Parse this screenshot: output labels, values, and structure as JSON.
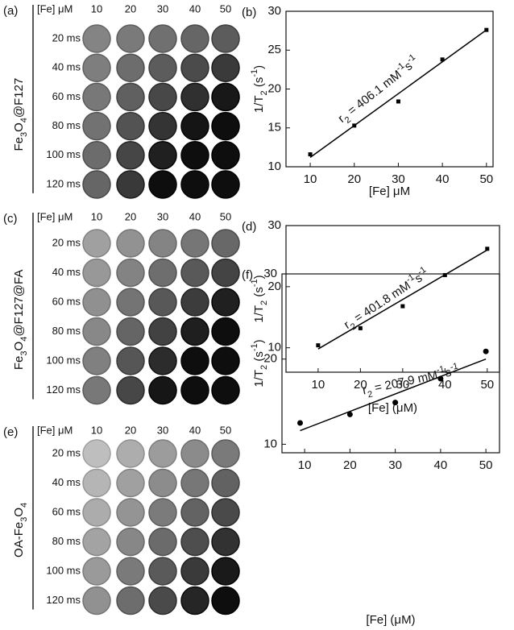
{
  "phantoms": [
    {
      "label": "(a)",
      "sample": [
        "Fe",
        "3",
        "O",
        "4",
        "@F127"
      ],
      "header": "[Fe] μM",
      "columns": [
        "10",
        "20",
        "30",
        "40",
        "50"
      ],
      "rows": [
        "20 ms",
        "40 ms",
        "60 ms",
        "80 ms",
        "100 ms",
        "120 ms"
      ]
    },
    {
      "label": "(c)",
      "sample": [
        "Fe",
        "3",
        "O",
        "4",
        "@F127@FA"
      ],
      "header": "[Fe] μM",
      "columns": [
        "10",
        "20",
        "30",
        "40",
        "50"
      ],
      "rows": [
        "20 ms",
        "40 ms",
        "60 ms",
        "80 ms",
        "100 ms",
        "120 ms"
      ]
    },
    {
      "label": "(e)",
      "sample": [
        "OA-Fe",
        "3",
        "O",
        "4"
      ],
      "header": "[Fe] μM",
      "columns": [
        "10",
        "20",
        "30",
        "40",
        "50"
      ],
      "rows": [
        "20 ms",
        "40 ms",
        "60 ms",
        "80 ms",
        "100 ms",
        "120 ms"
      ]
    }
  ],
  "chart_data": [
    {
      "type": "scatter",
      "label": "(b)",
      "x": [
        10,
        20,
        30,
        40,
        50
      ],
      "values": [
        11.6,
        15.3,
        18.4,
        23.8,
        27.6
      ],
      "fit": {
        "x": [
          10,
          50
        ],
        "y": [
          11.2,
          27.6
        ]
      },
      "xlim": [
        4.5,
        51.5
      ],
      "ylim": [
        10,
        30
      ],
      "xticks": [
        10,
        20,
        30,
        40,
        50
      ],
      "yticks": [
        10,
        15,
        20,
        25,
        30
      ],
      "xlabel": "[Fe] μM",
      "ylabel": [
        "1/T",
        "2",
        " (s",
        "-1",
        ")"
      ],
      "annotation": [
        "r",
        "2",
        " = 406.1 mM",
        "-1",
        "s",
        "-1"
      ],
      "marker": "square",
      "color": "#000000"
    },
    {
      "type": "scatter",
      "label": "(d)",
      "x": [
        10,
        20,
        30,
        40,
        50
      ],
      "values": [
        10.4,
        13.2,
        16.8,
        21.9,
        26.2
      ],
      "fit": {
        "x": [
          10,
          50
        ],
        "y": [
          9.8,
          26
        ]
      },
      "xlim": [
        2.4,
        52.9
      ],
      "ylim": [
        6,
        30
      ],
      "xticks": [
        10,
        20,
        30,
        40,
        50
      ],
      "yticks": [
        10,
        20,
        30
      ],
      "xlabel": "[Fe] (μM)",
      "ylabel": [
        "1/T",
        "2",
        " (s",
        "-1",
        ")"
      ],
      "annotation": [
        "r",
        "2",
        " = 401.8 mM",
        "-1",
        "s",
        "-1"
      ],
      "marker": "square",
      "color": "#000000"
    },
    {
      "type": "scatter",
      "label": "(f)",
      "x": [
        9,
        20,
        30,
        40,
        50
      ],
      "values": [
        12.5,
        13.5,
        14.9,
        17.7,
        20.9
      ],
      "fit": {
        "x": [
          9,
          50
        ],
        "y": [
          11.6,
          20
        ]
      },
      "xlim": [
        5,
        53
      ],
      "ylim": [
        9,
        30
      ],
      "xticks": [
        10,
        20,
        30,
        40,
        50
      ],
      "yticks": [
        10,
        20,
        30
      ],
      "xlabel": "[Fe] (μM)",
      "ylabel": [
        "1/T",
        "2",
        " (s",
        "-1",
        ")"
      ],
      "annotation": [
        "r",
        "2",
        " = 207.9 mM",
        "-1",
        "s",
        "-1"
      ],
      "marker": "circle",
      "color": "#000000"
    }
  ]
}
